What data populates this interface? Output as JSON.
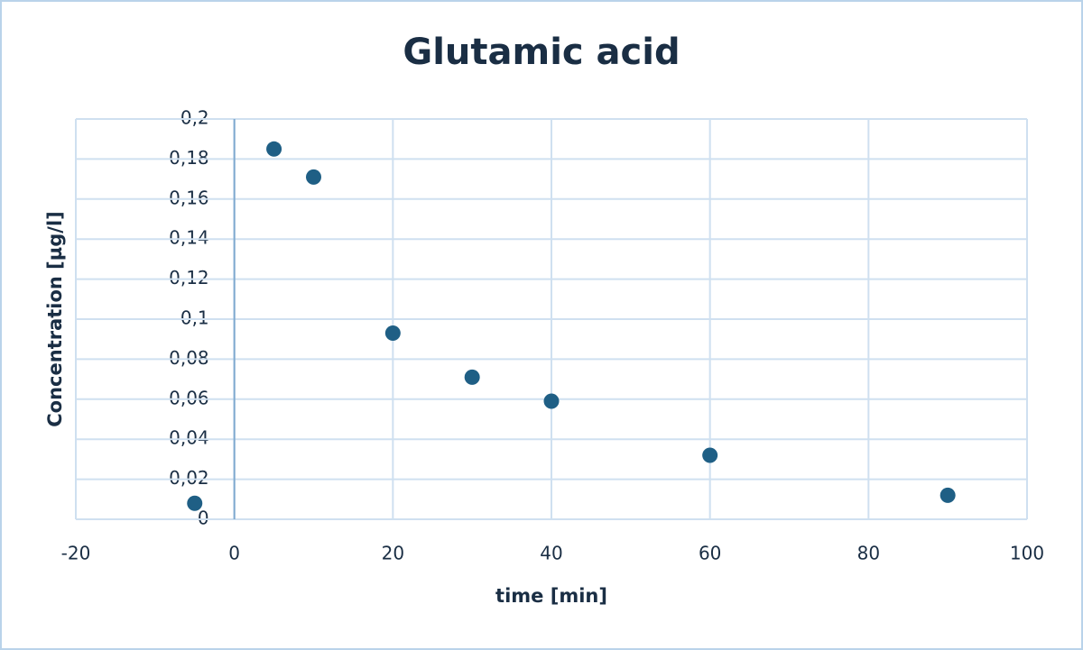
{
  "chart_data": {
    "type": "scatter",
    "title": "Glutamic acid",
    "x_label": "time  [min]",
    "y_label": "Concentration  [µg/l]",
    "series": [
      {
        "color": "#1f5f85",
        "x": [
          -5,
          5,
          10,
          20,
          30,
          40,
          60,
          90
        ],
        "values": [
          0.008,
          0.185,
          0.171,
          0.093,
          0.071,
          0.059,
          0.032,
          0.012
        ]
      }
    ],
    "xlim": [
      -20,
      100
    ],
    "xticks": [
      -20,
      0,
      20,
      40,
      60,
      80,
      100
    ],
    "ylim": [
      0,
      0.2
    ],
    "yticks": [
      0,
      {
        "value": 0.02,
        "label": "0,02"
      },
      {
        "value": 0.04,
        "label": "0,04"
      },
      {
        "value": 0.06,
        "label": "0,06"
      },
      {
        "value": 0.08,
        "label": "0,08"
      },
      {
        "value": 0.1,
        "label": "0,1"
      },
      {
        "value": 0.12,
        "label": "0,12"
      },
      {
        "value": 0.14,
        "label": "0,14"
      },
      {
        "value": 0.16,
        "label": "0,16"
      },
      {
        "value": 0.18,
        "label": "0,18"
      },
      {
        "value": 0.2,
        "label": "0,2"
      }
    ],
    "grid": true
  }
}
